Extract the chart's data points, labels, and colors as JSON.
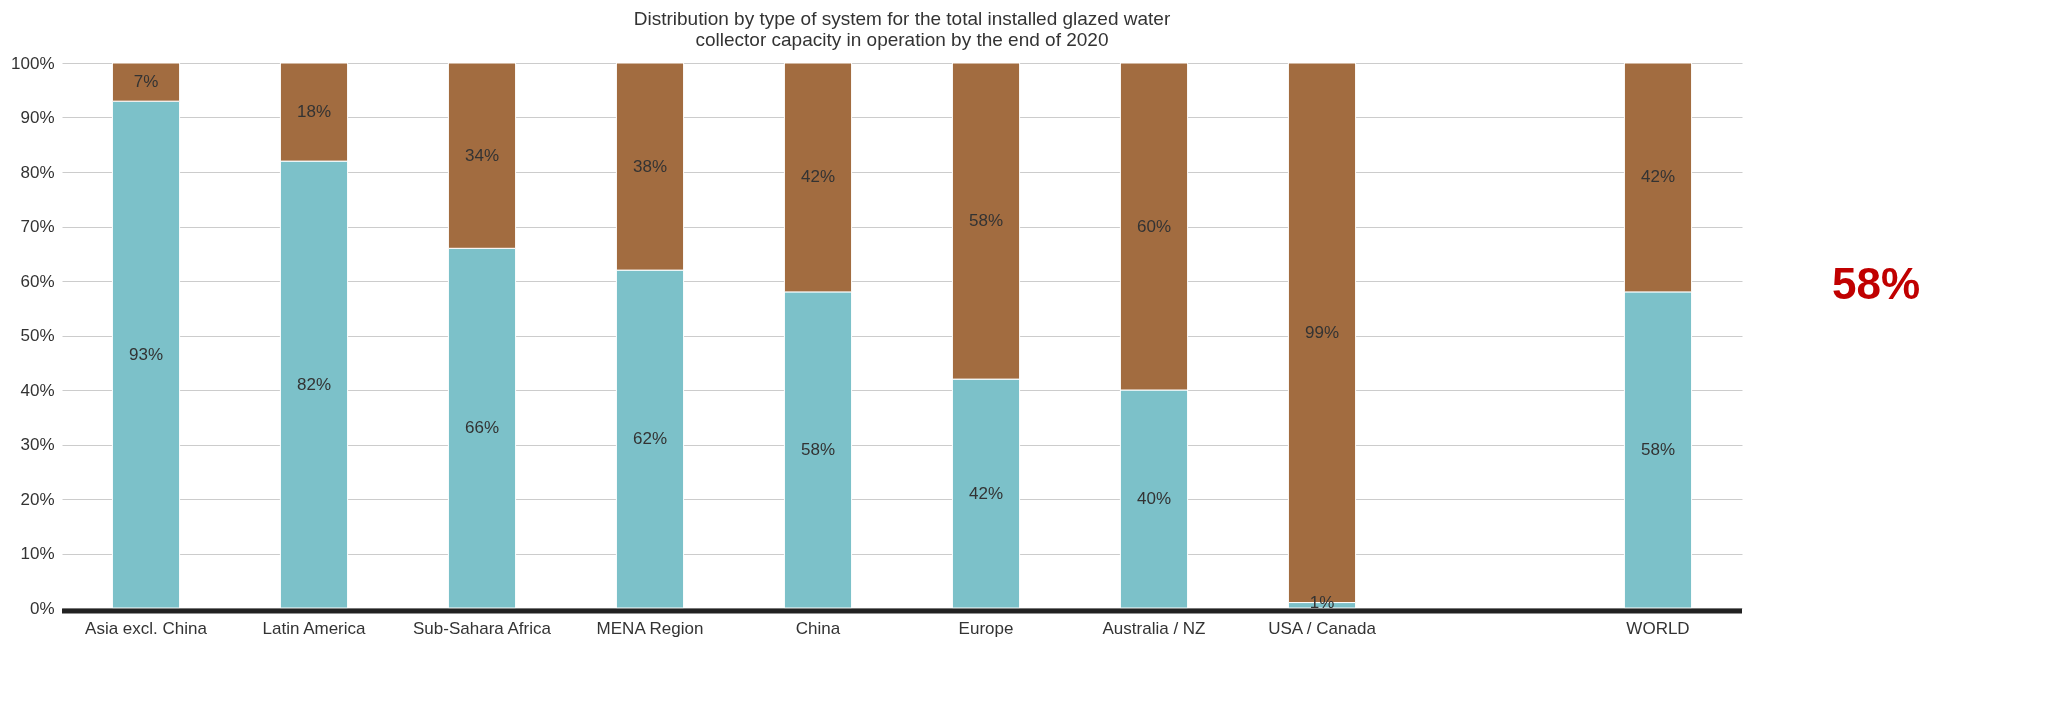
{
  "chart_data": {
    "type": "bar",
    "stacked": true,
    "title": [
      "Distribution by type of system for the total installed glazed water",
      "collector capacity in operation by the end of 2020"
    ],
    "categories": [
      "Asia excl. China",
      "Latin America",
      "Sub-Sahara Africa",
      "MENA Region",
      "China",
      "Europe",
      "Australia / NZ",
      "USA / Canada",
      null,
      "WORLD"
    ],
    "series": [
      {
        "color": "#7cc1c9",
        "values": [
          93,
          82,
          66,
          62,
          58,
          42,
          40,
          1,
          null,
          58
        ]
      },
      {
        "color": "#a26c40",
        "values": [
          7,
          18,
          34,
          38,
          42,
          58,
          60,
          99,
          null,
          42
        ]
      }
    ],
    "ylim": [
      0,
      100
    ],
    "yticks": [
      {
        "value": 0,
        "label": "0%"
      },
      {
        "value": 10,
        "label": "10%"
      },
      {
        "value": 20,
        "label": "20%"
      },
      {
        "value": 30,
        "label": "30%"
      },
      {
        "value": 40,
        "label": "40%"
      },
      {
        "value": 50,
        "label": "50%"
      },
      {
        "value": 60,
        "label": "60%"
      },
      {
        "value": 70,
        "label": "70%"
      },
      {
        "value": 80,
        "label": "80%"
      },
      {
        "value": 90,
        "label": "90%"
      },
      {
        "value": 100,
        "label": "100%"
      }
    ],
    "value_labels": [
      [
        "93%",
        "82%",
        "66%",
        "62%",
        "58%",
        "42%",
        "40%",
        "1%",
        null,
        "58%"
      ],
      [
        "7%",
        "18%",
        "34%",
        "38%",
        "42%",
        "58%",
        "60%",
        "99%",
        null,
        "42%"
      ]
    ],
    "grid": "y",
    "annotations": [
      "58%"
    ]
  }
}
